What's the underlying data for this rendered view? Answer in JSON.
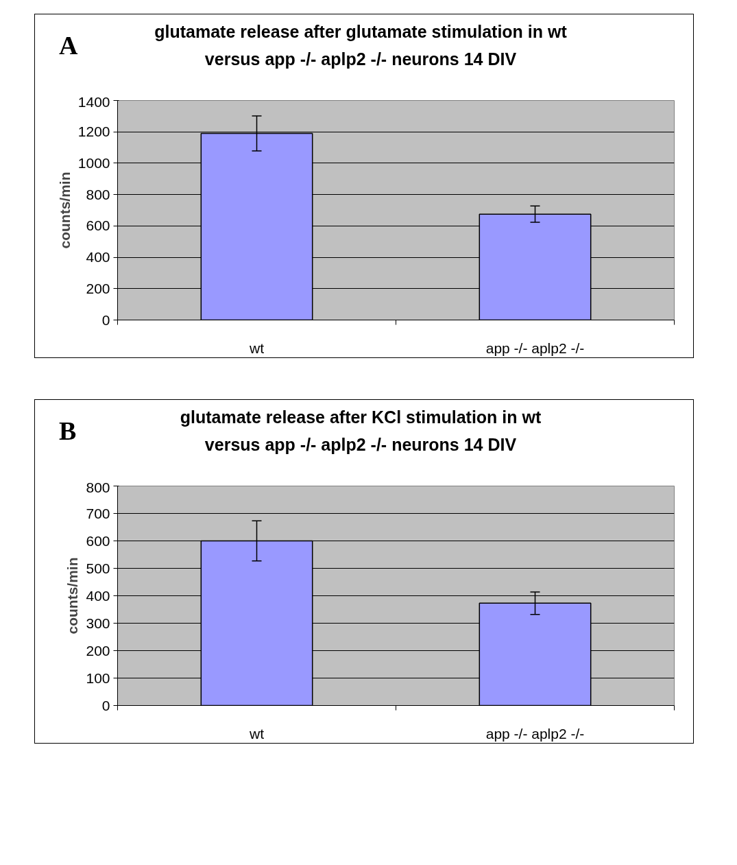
{
  "chart_data": [
    {
      "type": "bar",
      "title": "glutamate release after glutamate stimulation in wt\nversus app -/- aplp2 -/-  neurons 14 DIV",
      "annotations": [
        "A"
      ],
      "ylabel": "counts/min",
      "categories": [
        "wt",
        "app -/- aplp2 -/-"
      ],
      "values": [
        1190,
        675
      ],
      "errors": [
        112,
        52
      ],
      "color": "#9999ff",
      "ylim": [
        0,
        1400
      ],
      "yticks": [
        0,
        200,
        400,
        600,
        800,
        1000,
        1200,
        1400
      ],
      "grid": "y"
    },
    {
      "type": "bar",
      "title": "glutamate release after KCl stimulation in wt\nversus app -/- aplp2 -/- neurons 14 DIV",
      "annotations": [
        "B"
      ],
      "ylabel": "counts/min",
      "categories": [
        "wt",
        "app -/- aplp2 -/-"
      ],
      "values": [
        600,
        373
      ],
      "errors": [
        73,
        41
      ],
      "color": "#9999ff",
      "ylim": [
        0,
        800
      ],
      "yticks": [
        0,
        100,
        200,
        300,
        400,
        500,
        600,
        700,
        800
      ],
      "grid": "y"
    }
  ]
}
